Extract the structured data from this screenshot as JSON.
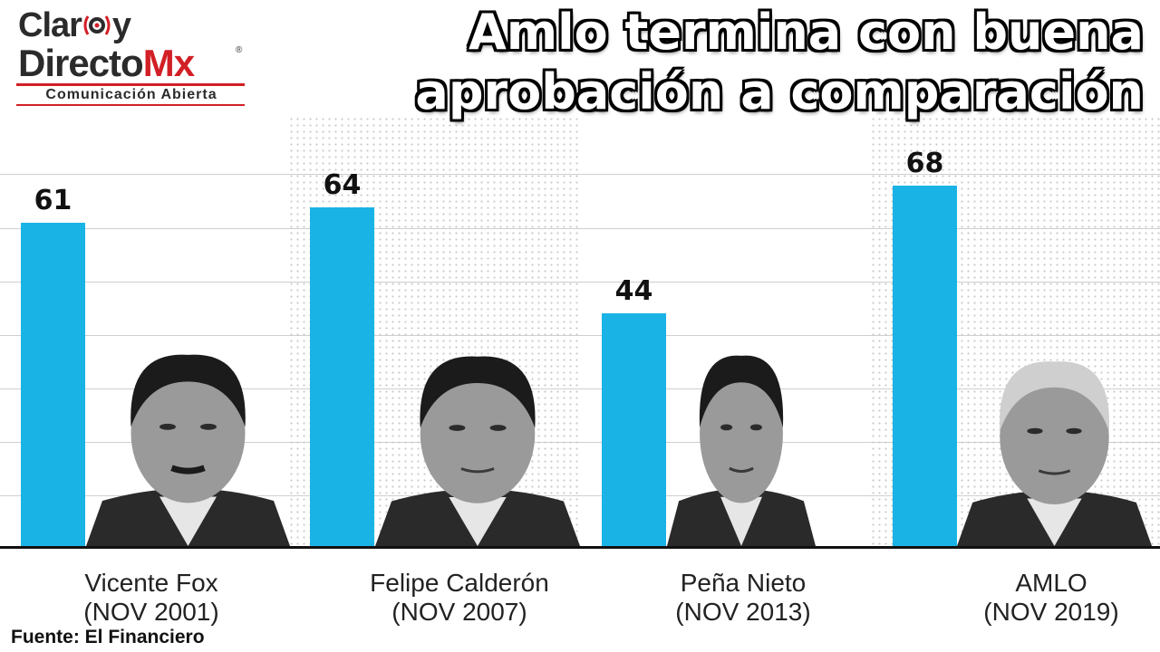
{
  "title_line1": "Amlo termina con buena",
  "title_line2": "aprobación a comparación",
  "source": "Fuente: El Financiero",
  "logo": {
    "line1_prefix": "Clar",
    "line1_suffix": "y",
    "line2": "Directo",
    "line2_accent": "Mx",
    "registered": "®",
    "tagline": "Comunicación Abierta"
  },
  "colors": {
    "bar": "#1ab3e6",
    "accent": "#d21f26",
    "axis": "#111111"
  },
  "chart_data": {
    "type": "bar",
    "title": "Amlo termina con buena aprobación a comparación",
    "categories": [
      [
        "Vicente Fox",
        "(NOV 2001)"
      ],
      [
        "Felipe Calderón",
        "(NOV 2007)"
      ],
      [
        "Peña Nieto",
        "(NOV 2013)"
      ],
      [
        "AMLO",
        "(NOV 2019)"
      ]
    ],
    "values": [
      61,
      64,
      44,
      68
    ],
    "portraits": [
      "portrait-icon",
      "portrait-icon",
      "portrait-icon",
      "portrait-icon"
    ],
    "ylim": [
      0,
      100
    ],
    "grid": true,
    "xlabel": "",
    "ylabel": ""
  }
}
